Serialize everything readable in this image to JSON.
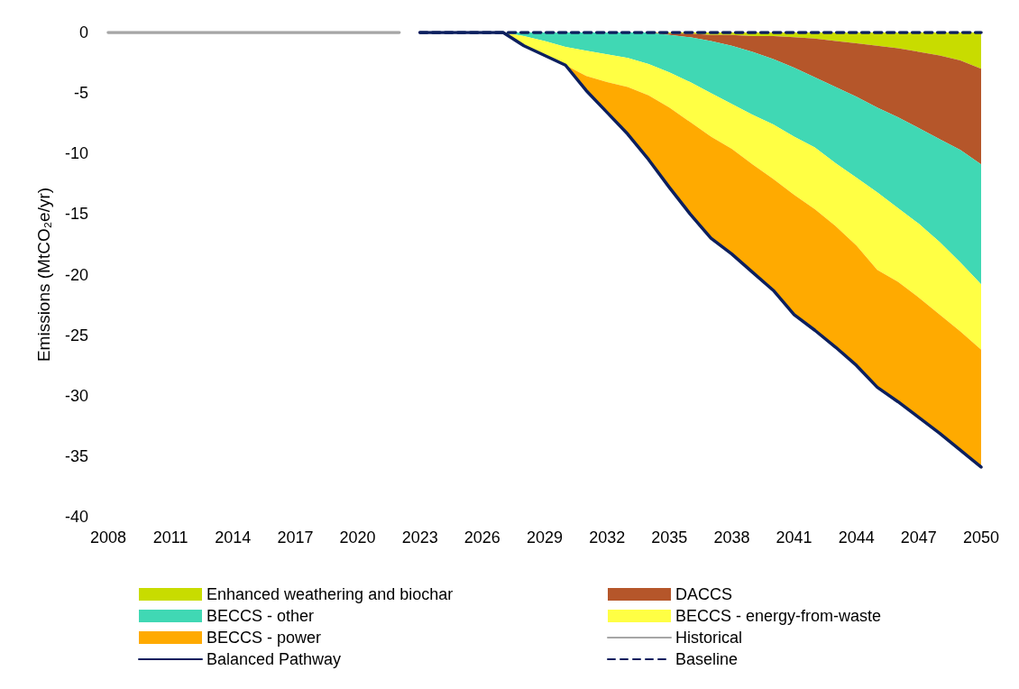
{
  "chart_data": {
    "type": "area",
    "ylabel": "Emissions (MtCO₂e/yr)",
    "stacked": true,
    "xlim": [
      2008,
      2050
    ],
    "xticks": [
      2008,
      2011,
      2014,
      2017,
      2020,
      2023,
      2026,
      2029,
      2032,
      2035,
      2038,
      2041,
      2044,
      2047,
      2050
    ],
    "ylim": [
      -40,
      0
    ],
    "yticks": [
      -40,
      -35,
      -30,
      -25,
      -20,
      -15,
      -10,
      -5,
      0
    ],
    "grid": false,
    "legend": "bottom",
    "marker": "none",
    "series": [
      {
        "name": "Enhanced weathering and biochar",
        "color": "#c8dc00",
        "x": [
          2027,
          2028,
          2029,
          2030,
          2031,
          2032,
          2033,
          2034,
          2035,
          2036,
          2037,
          2038,
          2039,
          2040,
          2041,
          2042,
          2043,
          2044,
          2045,
          2046,
          2047,
          2048,
          2049,
          2050
        ],
        "values": [
          0,
          0,
          0,
          0,
          0,
          0,
          0,
          0,
          -0.1,
          -0.1,
          -0.2,
          -0.2,
          -0.3,
          -0.3,
          -0.4,
          -0.5,
          -0.7,
          -0.9,
          -1.1,
          -1.3,
          -1.6,
          -1.9,
          -2.3,
          -3.0
        ]
      },
      {
        "name": "DACCS",
        "color": "#b5562a",
        "x": [
          2027,
          2028,
          2029,
          2030,
          2031,
          2032,
          2033,
          2034,
          2035,
          2036,
          2037,
          2038,
          2039,
          2040,
          2041,
          2042,
          2043,
          2044,
          2045,
          2046,
          2047,
          2048,
          2049,
          2050
        ],
        "values": [
          0,
          0,
          0,
          0,
          0,
          0,
          0,
          0,
          -0.1,
          -0.3,
          -0.5,
          -0.9,
          -1.3,
          -1.9,
          -2.5,
          -3.2,
          -3.8,
          -4.4,
          -5.1,
          -5.7,
          -6.3,
          -6.9,
          -7.4,
          -7.9
        ]
      },
      {
        "name": "BECCS - other",
        "color": "#40d8b4",
        "x": [
          2027,
          2028,
          2029,
          2030,
          2031,
          2032,
          2033,
          2034,
          2035,
          2036,
          2037,
          2038,
          2039,
          2040,
          2041,
          2042,
          2043,
          2044,
          2045,
          2046,
          2047,
          2048,
          2049,
          2050
        ],
        "values": [
          0,
          -0.3,
          -0.7,
          -1.2,
          -1.5,
          -1.8,
          -2.1,
          -2.6,
          -3.1,
          -3.7,
          -4.3,
          -4.8,
          -5.2,
          -5.4,
          -5.7,
          -5.8,
          -6.3,
          -6.7,
          -7.0,
          -7.5,
          -7.9,
          -8.5,
          -9.3,
          -9.9
        ]
      },
      {
        "name": "BECCS - energy-from-waste",
        "color": "#ffff44",
        "x": [
          2027,
          2028,
          2029,
          2030,
          2031,
          2032,
          2033,
          2034,
          2035,
          2036,
          2037,
          2038,
          2039,
          2040,
          2041,
          2042,
          2043,
          2044,
          2045,
          2046,
          2047,
          2048,
          2049,
          2050
        ],
        "values": [
          0,
          -0.8,
          -1.2,
          -1.5,
          -2.1,
          -2.3,
          -2.4,
          -2.6,
          -2.9,
          -3.3,
          -3.6,
          -3.7,
          -4.1,
          -4.5,
          -4.8,
          -5.1,
          -5.2,
          -5.6,
          -6.4,
          -6.1,
          -6.1,
          -6.0,
          -5.7,
          -5.4
        ]
      },
      {
        "name": "BECCS - power",
        "color": "#ffaa00",
        "x": [
          2027,
          2028,
          2029,
          2030,
          2031,
          2032,
          2033,
          2034,
          2035,
          2036,
          2037,
          2038,
          2039,
          2040,
          2041,
          2042,
          2043,
          2044,
          2045,
          2046,
          2047,
          2048,
          2049,
          2050
        ],
        "values": [
          0,
          0,
          0,
          0,
          -1.2,
          -2.5,
          -3.9,
          -5.3,
          -6.6,
          -7.6,
          -8.4,
          -8.7,
          -8.9,
          -9.2,
          -9.9,
          -10.0,
          -10.0,
          -9.9,
          -9.7,
          -9.9,
          -9.9,
          -9.8,
          -9.8,
          -9.7
        ]
      },
      {
        "name": "Historical",
        "type": "line",
        "color": "#a6a6a6",
        "x": [
          2008,
          2022
        ],
        "values": [
          0,
          0
        ]
      },
      {
        "name": "Balanced Pathway",
        "type": "line",
        "color": "#0c1f5e",
        "x": [
          2023,
          2024,
          2025,
          2026,
          2027,
          2028,
          2029,
          2030,
          2031,
          2032,
          2033,
          2034,
          2035,
          2036,
          2037,
          2038,
          2039,
          2040,
          2041,
          2042,
          2043,
          2044,
          2045,
          2046,
          2047,
          2048,
          2049,
          2050
        ],
        "values": [
          0,
          0,
          0,
          0,
          0,
          -1.1,
          -1.9,
          -2.7,
          -4.8,
          -6.6,
          -8.4,
          -10.5,
          -12.8,
          -15.0,
          -17.0,
          -18.3,
          -19.8,
          -21.3,
          -23.3,
          -24.6,
          -26.0,
          -27.5,
          -29.3,
          -30.5,
          -31.8,
          -33.1,
          -34.5,
          -35.9
        ]
      },
      {
        "name": "Baseline",
        "type": "line",
        "line_style": "dashed",
        "color": "#0c1f5e",
        "x": [
          2023,
          2050
        ],
        "values": [
          0,
          0
        ]
      }
    ]
  }
}
